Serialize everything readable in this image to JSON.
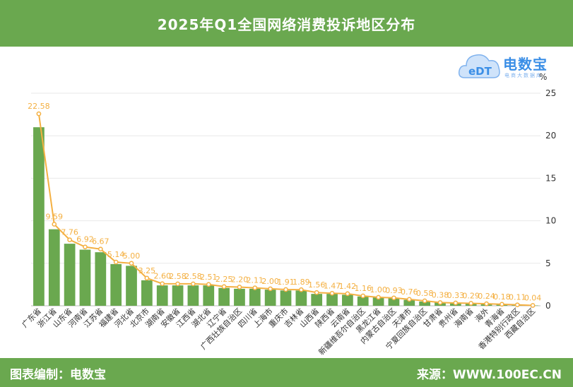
{
  "header": {
    "title": "2025年Q1全国网络消费投诉地区分布"
  },
  "logo": {
    "brand": "电数宝",
    "tagline": "电商大数据库",
    "monogram": "eDT",
    "icon": "cloud-logo-icon"
  },
  "footer": {
    "left": "图表编制：电数宝",
    "right": "来源：WWW.100EC.CN"
  },
  "colors": {
    "header": "#6aa84f",
    "bar": "#6aa84f",
    "line": "#f4b042",
    "label": "#f4b042",
    "brand": "#3a8ee6"
  },
  "chart_data": {
    "type": "bar",
    "title": "2025年Q1全国网络消费投诉地区分布",
    "ylabel": "%",
    "ylim": [
      0,
      25
    ],
    "yticks": [
      0,
      5,
      10,
      15,
      20,
      25
    ],
    "grid": true,
    "y_axis_position": "right",
    "categories": [
      "广东省",
      "浙江省",
      "山东省",
      "河南省",
      "江苏省",
      "福建省",
      "河北省",
      "北京市",
      "湖南省",
      "安徽省",
      "江西省",
      "湖北省",
      "辽宁省",
      "广西壮族自治区",
      "四川省",
      "上海市",
      "重庆市",
      "吉林省",
      "山西省",
      "陕西省",
      "云南省",
      "新疆维吾尔自治区",
      "黑龙江省",
      "内蒙古自治区",
      "天津市",
      "宁夏回族自治区",
      "甘肃省",
      "贵州省",
      "海南省",
      "海外",
      "青海省",
      "香港特别行政区",
      "西藏自治区"
    ],
    "series": [
      {
        "type": "bar",
        "values": [
          21.0,
          9.0,
          7.3,
          6.6,
          6.3,
          4.9,
          4.7,
          3.0,
          2.4,
          2.4,
          2.4,
          2.4,
          2.1,
          2.0,
          2.0,
          1.9,
          1.8,
          1.8,
          1.4,
          1.4,
          1.3,
          1.1,
          1.0,
          0.9,
          0.7,
          0.5,
          0.4,
          0.3,
          0.3,
          0.2,
          0.2,
          0.1,
          0.04
        ]
      },
      {
        "type": "line",
        "values": [
          22.58,
          9.59,
          7.76,
          6.92,
          6.67,
          5.14,
          5.0,
          3.25,
          2.6,
          2.58,
          2.58,
          2.51,
          2.25,
          2.2,
          2.11,
          2.0,
          1.91,
          1.89,
          1.56,
          1.47,
          1.42,
          1.16,
          1.0,
          0.93,
          0.76,
          0.58,
          0.38,
          0.33,
          0.29,
          0.24,
          0.18,
          0.11,
          0.04
        ],
        "labels": [
          "22.58",
          "9.59",
          "7.76",
          "6.92",
          "6.67",
          "5.14",
          "5.00",
          "3.25",
          "2.60",
          "2.58",
          "2.58",
          "2.51",
          "2.25",
          "2.20",
          "2.11",
          "2.00",
          "1.91",
          "1.89",
          "1.56",
          "1.47",
          "1.42",
          "1.16",
          "1.00",
          "0.93",
          "0.76",
          "0.58",
          "0.38",
          "0.33",
          "0.29",
          "0.24",
          "0.18",
          "0.11",
          "0.04"
        ]
      }
    ]
  }
}
